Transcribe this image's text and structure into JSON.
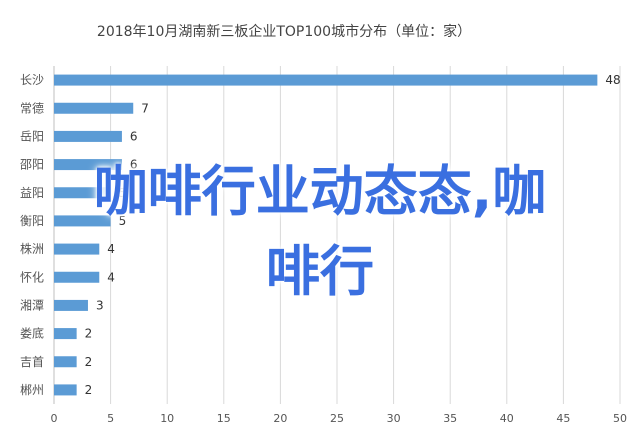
{
  "chart_data": {
    "type": "bar",
    "orientation": "horizontal",
    "title": "2018年10月湖南新三板企业TOP100城市分布（单位：家）",
    "categories": [
      "长沙",
      "常德",
      "岳阳",
      "邵阳",
      "益阳",
      "衡阳",
      "株洲",
      "怀化",
      "湘潭",
      "娄底",
      "吉首",
      "郴州"
    ],
    "values": [
      48,
      7,
      6,
      6,
      5,
      5,
      4,
      4,
      3,
      2,
      2,
      2
    ],
    "xlim": [
      0,
      50
    ],
    "xticks": [
      "0",
      "5",
      "10",
      "15",
      "20",
      "25",
      "30",
      "35",
      "40",
      "45",
      "50"
    ],
    "bar_color": "#5b9bd5",
    "grid": true,
    "legend": "none"
  },
  "overlay_text": {
    "line1": "咖啡行业动态态,咖",
    "line2": "啡行"
  }
}
